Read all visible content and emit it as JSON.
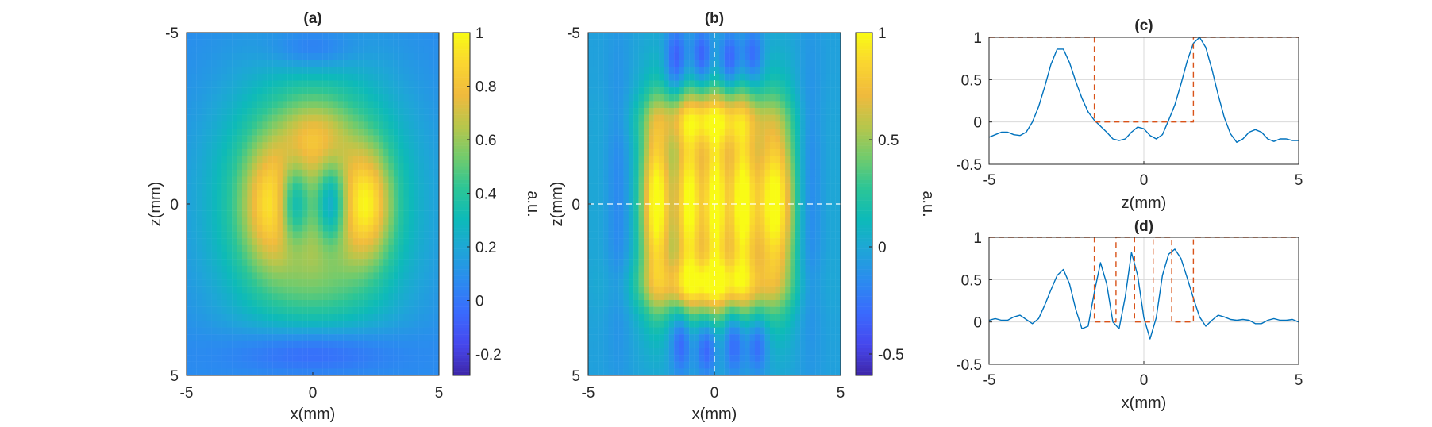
{
  "colormap": [
    "#3e26a8",
    "#4648ee",
    "#3a6afd",
    "#2b8af0",
    "#1fa5d8",
    "#0dbab9",
    "#2cc596",
    "#72cb6c",
    "#b8c64b",
    "#f0ba3d",
    "#fad530",
    "#f9fb15"
  ],
  "line_color": "#0072bd",
  "mask_color": "#d95319",
  "grid_color": "#d9d9d9",
  "chart_data": [
    {
      "id": "a",
      "type": "heatmap",
      "title": "(a)",
      "xlabel": "x(mm)",
      "ylabel": "z(mm)",
      "xlim": [
        -5,
        5
      ],
      "ylim": [
        -5,
        5
      ],
      "x_ticks": [
        "-5",
        "0",
        "5"
      ],
      "y_ticks": [
        "-5",
        "0",
        "5"
      ],
      "colorbar": {
        "label": "a.u.",
        "range": [
          -0.28,
          1
        ],
        "ticks": [
          {
            "v": 1,
            "t": "1"
          },
          {
            "v": 0.8,
            "t": "0.8"
          },
          {
            "v": 0.6,
            "t": "0.6"
          },
          {
            "v": 0.4,
            "t": "0.4"
          },
          {
            "v": 0.2,
            "t": "0.2"
          },
          {
            "v": 0,
            "t": "0"
          },
          {
            "v": -0.2,
            "t": "-0.2"
          }
        ]
      },
      "field": {
        "background": 0.07,
        "blobs": [
          {
            "x": 0,
            "z": 0,
            "sx": 2.5,
            "sz": 2.6,
            "a": 0.72
          },
          {
            "x": -1.7,
            "z": 0,
            "sx": 0.75,
            "sz": 1.2,
            "a": 0.32
          },
          {
            "x": 2.2,
            "z": 0,
            "sx": 0.65,
            "sz": 1.1,
            "a": 0.42
          },
          {
            "x": 0.1,
            "z": -2.0,
            "sx": 0.9,
            "sz": 0.7,
            "a": 0.22
          },
          {
            "x": -0.7,
            "z": 0,
            "sx": 0.45,
            "sz": 0.85,
            "a": -0.55
          },
          {
            "x": 0.7,
            "z": 0,
            "sx": 0.45,
            "sz": 0.85,
            "a": -0.55
          },
          {
            "x": 0,
            "z": 4.3,
            "sx": 2.2,
            "sz": 0.55,
            "a": -0.27
          },
          {
            "x": 0,
            "z": -4.5,
            "sx": 1.2,
            "sz": 0.45,
            "a": -0.18
          }
        ]
      }
    },
    {
      "id": "b",
      "type": "heatmap",
      "title": "(b)",
      "xlabel": "x(mm)",
      "ylabel": "z(mm)",
      "xlim": [
        -5,
        5
      ],
      "ylim": [
        -5,
        5
      ],
      "x_ticks": [
        "-5",
        "0",
        "5"
      ],
      "y_ticks": [
        "-5",
        "0",
        "5"
      ],
      "crosshair": {
        "x": 0,
        "z": 0
      },
      "colorbar": {
        "label": "a.u.",
        "range": [
          -0.6,
          1
        ],
        "ticks": [
          {
            "v": 1,
            "t": "1"
          },
          {
            "v": 0.5,
            "t": "0.5"
          },
          {
            "v": 0,
            "t": "0"
          },
          {
            "v": -0.5,
            "t": "-0.5"
          }
        ]
      },
      "field": {
        "background": -0.05,
        "blobs": [
          {
            "x": -2.3,
            "z": 0,
            "sx": 0.42,
            "sz": 1.9,
            "a": 0.95
          },
          {
            "x": -1.0,
            "z": 0,
            "sx": 0.38,
            "sz": 2.0,
            "a": 0.85
          },
          {
            "x": 0.05,
            "z": 0,
            "sx": 0.35,
            "sz": 2.0,
            "a": 0.85
          },
          {
            "x": 1.1,
            "z": 0,
            "sx": 0.38,
            "sz": 2.0,
            "a": 0.85
          },
          {
            "x": 2.4,
            "z": 0,
            "sx": 0.55,
            "sz": 1.9,
            "a": 0.95
          },
          {
            "x": -0.2,
            "z": -2.5,
            "sx": 1.6,
            "sz": 0.55,
            "a": 0.55
          },
          {
            "x": -0.2,
            "z": 2.4,
            "sx": 1.8,
            "sz": 0.55,
            "a": 0.6
          },
          {
            "x": 0,
            "z": 0,
            "sx": 2.6,
            "sz": 2.6,
            "a": 0.25
          },
          {
            "x": -1.5,
            "z": -4.2,
            "sx": 0.3,
            "sz": 0.7,
            "a": -0.4
          },
          {
            "x": -0.5,
            "z": -4.3,
            "sx": 0.3,
            "sz": 0.6,
            "a": -0.4
          },
          {
            "x": 0.6,
            "z": -4.2,
            "sx": 0.3,
            "sz": 0.6,
            "a": -0.4
          },
          {
            "x": 1.5,
            "z": -4.3,
            "sx": 0.3,
            "sz": 0.6,
            "a": -0.35
          },
          {
            "x": -1.3,
            "z": 4.0,
            "sx": 0.3,
            "sz": 0.7,
            "a": -0.4
          },
          {
            "x": -0.3,
            "z": 4.2,
            "sx": 0.3,
            "sz": 0.6,
            "a": -0.4
          },
          {
            "x": 0.8,
            "z": 4.0,
            "sx": 0.3,
            "sz": 0.7,
            "a": -0.4
          },
          {
            "x": 1.7,
            "z": 4.1,
            "sx": 0.3,
            "sz": 0.6,
            "a": -0.35
          },
          {
            "x": -3.8,
            "z": 0,
            "sx": 0.35,
            "sz": 3.0,
            "a": -0.2
          },
          {
            "x": 3.8,
            "z": 0,
            "sx": 0.35,
            "sz": 3.0,
            "a": -0.2
          }
        ]
      }
    },
    {
      "id": "c",
      "type": "line",
      "title": "(c)",
      "xlabel": "z(mm)",
      "xlim": [
        -5,
        5
      ],
      "ylim": [
        -0.5,
        1
      ],
      "x_ticks": [
        {
          "v": -5,
          "t": "-5"
        },
        {
          "v": 0,
          "t": "0"
        },
        {
          "v": 5,
          "t": "5"
        }
      ],
      "y_ticks": [
        {
          "v": 1,
          "t": "1"
        },
        {
          "v": 0.5,
          "t": "0.5"
        },
        {
          "v": 0,
          "t": "0"
        },
        {
          "v": -0.5,
          "t": "-0.5"
        }
      ],
      "grid": true,
      "series": [
        {
          "kind": "profile",
          "x": [
            -5.0,
            -4.8,
            -4.6,
            -4.4,
            -4.2,
            -4.0,
            -3.8,
            -3.6,
            -3.4,
            -3.2,
            -3.0,
            -2.8,
            -2.6,
            -2.4,
            -2.2,
            -2.0,
            -1.8,
            -1.6,
            -1.4,
            -1.2,
            -1.0,
            -0.8,
            -0.6,
            -0.4,
            -0.2,
            0.0,
            0.2,
            0.4,
            0.6,
            0.8,
            1.0,
            1.2,
            1.4,
            1.6,
            1.8,
            2.0,
            2.2,
            2.4,
            2.6,
            2.8,
            3.0,
            3.2,
            3.4,
            3.6,
            3.8,
            4.0,
            4.2,
            4.4,
            4.6,
            4.8,
            5.0
          ],
          "y": [
            -0.18,
            -0.15,
            -0.12,
            -0.12,
            -0.15,
            -0.16,
            -0.12,
            0.0,
            0.18,
            0.42,
            0.68,
            0.86,
            0.86,
            0.7,
            0.48,
            0.28,
            0.12,
            0.02,
            -0.05,
            -0.12,
            -0.2,
            -0.22,
            -0.2,
            -0.12,
            -0.06,
            -0.08,
            -0.16,
            -0.2,
            -0.15,
            0.02,
            0.2,
            0.45,
            0.72,
            0.93,
            1.0,
            0.88,
            0.62,
            0.32,
            0.05,
            -0.14,
            -0.24,
            -0.2,
            -0.12,
            -0.09,
            -0.12,
            -0.2,
            -0.23,
            -0.2,
            -0.2,
            -0.22,
            -0.22
          ]
        },
        {
          "kind": "mask",
          "dashed": true,
          "x": [
            -5,
            -1.6,
            -1.6,
            1.6,
            1.6,
            5
          ],
          "y": [
            1,
            1,
            0,
            0,
            1,
            1
          ]
        }
      ]
    },
    {
      "id": "d",
      "type": "line",
      "title": "(d)",
      "xlabel": "x(mm)",
      "xlim": [
        -5,
        5
      ],
      "ylim": [
        -0.5,
        1
      ],
      "x_ticks": [
        {
          "v": -5,
          "t": "-5"
        },
        {
          "v": 0,
          "t": "0"
        },
        {
          "v": 5,
          "t": "5"
        }
      ],
      "y_ticks": [
        {
          "v": 1,
          "t": "1"
        },
        {
          "v": 0.5,
          "t": "0.5"
        },
        {
          "v": 0,
          "t": "0"
        },
        {
          "v": -0.5,
          "t": "-0.5"
        }
      ],
      "grid": true,
      "series": [
        {
          "kind": "profile",
          "x": [
            -5.0,
            -4.8,
            -4.6,
            -4.4,
            -4.2,
            -4.0,
            -3.8,
            -3.6,
            -3.4,
            -3.2,
            -3.0,
            -2.8,
            -2.6,
            -2.4,
            -2.2,
            -2.0,
            -1.8,
            -1.6,
            -1.4,
            -1.2,
            -1.0,
            -0.8,
            -0.6,
            -0.4,
            -0.2,
            0.0,
            0.2,
            0.4,
            0.6,
            0.8,
            1.0,
            1.2,
            1.4,
            1.6,
            1.8,
            2.0,
            2.2,
            2.4,
            2.6,
            2.8,
            3.0,
            3.2,
            3.4,
            3.6,
            3.8,
            4.0,
            4.2,
            4.4,
            4.6,
            4.8,
            5.0
          ],
          "y": [
            0.02,
            0.04,
            0.02,
            0.02,
            0.06,
            0.08,
            0.03,
            -0.02,
            0.04,
            0.2,
            0.38,
            0.55,
            0.62,
            0.45,
            0.15,
            -0.08,
            -0.05,
            0.35,
            0.7,
            0.45,
            0.0,
            -0.08,
            0.3,
            0.82,
            0.55,
            0.05,
            -0.2,
            0.05,
            0.55,
            0.8,
            0.86,
            0.75,
            0.52,
            0.28,
            0.06,
            -0.05,
            0.02,
            0.08,
            0.06,
            0.03,
            0.02,
            0.03,
            0.02,
            -0.02,
            -0.02,
            0.02,
            0.04,
            0.02,
            0.02,
            0.03,
            0.0
          ]
        },
        {
          "kind": "mask",
          "dashed": true,
          "x": [
            -5,
            -1.6,
            -1.6,
            -0.9,
            -0.9,
            -0.3,
            -0.3,
            0.3,
            0.3,
            0.9,
            0.9,
            1.6,
            1.6,
            5
          ],
          "y": [
            1,
            1,
            0,
            0,
            1,
            1,
            0,
            0,
            1,
            1,
            0,
            0,
            1,
            1
          ]
        }
      ]
    }
  ]
}
